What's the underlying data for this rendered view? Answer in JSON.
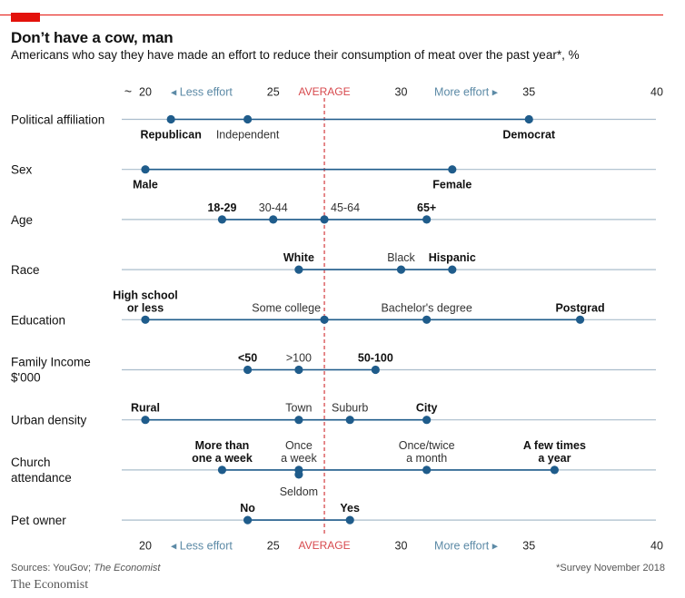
{
  "header": {
    "title": "Don’t have a cow, man",
    "subtitle": "Americans who say they have made an effort to reduce their consumption of meat over the past year*, %"
  },
  "footer": {
    "sources_prefix": "Sources: YouGov; ",
    "sources_italic": "The Economist",
    "note": "*Survey November 2018",
    "logo": "The Economist"
  },
  "colors": {
    "accent": "#e3120b",
    "dot": "#1f5c8b",
    "line": "#aabdcc",
    "average": "#d7494d",
    "effort": "#5c8aa6"
  },
  "chart_data": {
    "type": "dot",
    "x_axis": {
      "ticks": [
        20,
        25,
        30,
        35,
        40
      ],
      "range": [
        19,
        40
      ],
      "less_label": "Less effort",
      "more_label": "More effort",
      "break_symbol": "~"
    },
    "average": {
      "value": 27,
      "label": "AVERAGE"
    },
    "categories": [
      {
        "name": [
          "Political affiliation"
        ],
        "points": [
          {
            "label": [
              "Republican"
            ],
            "value": 21,
            "pos": "below",
            "bold": true
          },
          {
            "label": [
              "Independent"
            ],
            "value": 24,
            "pos": "below",
            "bold": false
          },
          {
            "label": [
              "Democrat"
            ],
            "value": 35,
            "pos": "below",
            "bold": true
          }
        ]
      },
      {
        "name": [
          "Sex"
        ],
        "points": [
          {
            "label": [
              "Male"
            ],
            "value": 20,
            "pos": "below",
            "bold": true
          },
          {
            "label": [
              "Female"
            ],
            "value": 32,
            "pos": "below",
            "bold": true
          }
        ]
      },
      {
        "name": [
          "Age"
        ],
        "points": [
          {
            "label": [
              "18-29"
            ],
            "value": 23,
            "pos": "above",
            "bold": true
          },
          {
            "label": [
              "30-44"
            ],
            "value": 25,
            "pos": "above",
            "bold": false
          },
          {
            "label": [
              "45-64"
            ],
            "value": 27,
            "pos": "above-right",
            "bold": false
          },
          {
            "label": [
              "65+"
            ],
            "value": 31,
            "pos": "above",
            "bold": true
          }
        ]
      },
      {
        "name": [
          "Race"
        ],
        "points": [
          {
            "label": [
              "White"
            ],
            "value": 26,
            "pos": "above",
            "bold": true
          },
          {
            "label": [
              "Black"
            ],
            "value": 30,
            "pos": "above",
            "bold": false
          },
          {
            "label": [
              "Hispanic"
            ],
            "value": 32,
            "pos": "above",
            "bold": true
          }
        ]
      },
      {
        "name": [
          "Education"
        ],
        "points": [
          {
            "label": [
              "High school",
              "or less"
            ],
            "value": 20,
            "pos": "above",
            "bold": true
          },
          {
            "label": [
              "Some college"
            ],
            "value": 27,
            "pos": "above-left",
            "bold": false
          },
          {
            "label": [
              "Bachelor's degree"
            ],
            "value": 31,
            "pos": "above",
            "bold": false
          },
          {
            "label": [
              "Postgrad"
            ],
            "value": 37,
            "pos": "above",
            "bold": true
          }
        ]
      },
      {
        "name": [
          "Family Income",
          "$'000"
        ],
        "points": [
          {
            "label": [
              "<50"
            ],
            "value": 24,
            "pos": "above",
            "bold": true
          },
          {
            "label": [
              ">100"
            ],
            "value": 26,
            "pos": "above",
            "bold": false
          },
          {
            "label": [
              "50-100"
            ],
            "value": 29,
            "pos": "above",
            "bold": true
          }
        ]
      },
      {
        "name": [
          "Urban density"
        ],
        "points": [
          {
            "label": [
              "Rural"
            ],
            "value": 20,
            "pos": "above",
            "bold": true
          },
          {
            "label": [
              "Town"
            ],
            "value": 26,
            "pos": "above",
            "bold": false
          },
          {
            "label": [
              "Suburb"
            ],
            "value": 28,
            "pos": "above",
            "bold": false
          },
          {
            "label": [
              "City"
            ],
            "value": 31,
            "pos": "above",
            "bold": true
          }
        ]
      },
      {
        "name": [
          "Church",
          "attendance"
        ],
        "points": [
          {
            "label": [
              "More than",
              "one a week"
            ],
            "value": 23,
            "pos": "above",
            "bold": true
          },
          {
            "label": [
              "Once",
              "a week"
            ],
            "value": 26,
            "pos": "above",
            "bold": false
          },
          {
            "label": [
              "Seldom"
            ],
            "value": 26,
            "pos": "below-low",
            "bold": false
          },
          {
            "label": [
              "Once/twice",
              "a month"
            ],
            "value": 31,
            "pos": "above",
            "bold": false
          },
          {
            "label": [
              "A few times",
              "a year"
            ],
            "value": 36,
            "pos": "above",
            "bold": true
          }
        ]
      },
      {
        "name": [
          "Pet owner"
        ],
        "points": [
          {
            "label": [
              "No"
            ],
            "value": 24,
            "pos": "above",
            "bold": true
          },
          {
            "label": [
              "Yes"
            ],
            "value": 28,
            "pos": "above",
            "bold": true
          }
        ]
      }
    ]
  }
}
